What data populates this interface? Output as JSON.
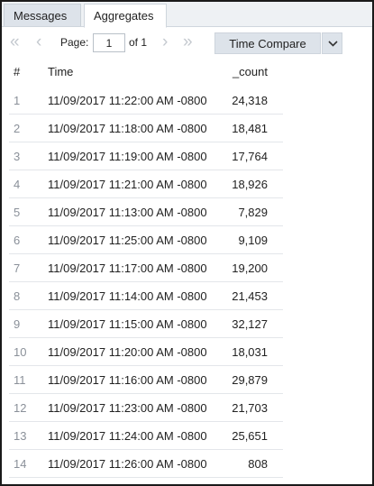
{
  "tabs": [
    {
      "label": "Messages",
      "active": false
    },
    {
      "label": "Aggregates",
      "active": true
    }
  ],
  "pagination": {
    "first_icon": "«",
    "prev_icon": "‹",
    "next_icon": "›",
    "last_icon": "»",
    "page_label": "Page:",
    "page_value": "1",
    "of_label": "of 1"
  },
  "time_compare": {
    "label": "Time Compare",
    "dropdown_icon": "chevron-down-icon"
  },
  "table": {
    "columns": [
      "#",
      "Time",
      "_count"
    ],
    "rows": [
      {
        "idx": "1",
        "time": "11/09/2017 11:22:00 AM -0800",
        "count": "24,318"
      },
      {
        "idx": "2",
        "time": "11/09/2017 11:18:00 AM -0800",
        "count": "18,481"
      },
      {
        "idx": "3",
        "time": "11/09/2017 11:19:00 AM -0800",
        "count": "17,764"
      },
      {
        "idx": "4",
        "time": "11/09/2017 11:21:00 AM -0800",
        "count": "18,926"
      },
      {
        "idx": "5",
        "time": "11/09/2017 11:13:00 AM -0800",
        "count": "7,829"
      },
      {
        "idx": "6",
        "time": "11/09/2017 11:25:00 AM -0800",
        "count": "9,109"
      },
      {
        "idx": "7",
        "time": "11/09/2017 11:17:00 AM -0800",
        "count": "19,200"
      },
      {
        "idx": "8",
        "time": "11/09/2017 11:14:00 AM -0800",
        "count": "21,453"
      },
      {
        "idx": "9",
        "time": "11/09/2017 11:15:00 AM -0800",
        "count": "32,127"
      },
      {
        "idx": "10",
        "time": "11/09/2017 11:20:00 AM -0800",
        "count": "18,031"
      },
      {
        "idx": "11",
        "time": "11/09/2017 11:16:00 AM -0800",
        "count": "29,879"
      },
      {
        "idx": "12",
        "time": "11/09/2017 11:23:00 AM -0800",
        "count": "21,703"
      },
      {
        "idx": "13",
        "time": "11/09/2017 11:24:00 AM -0800",
        "count": "25,651"
      },
      {
        "idx": "14",
        "time": "11/09/2017 11:26:00 AM -0800",
        "count": "808"
      }
    ]
  }
}
